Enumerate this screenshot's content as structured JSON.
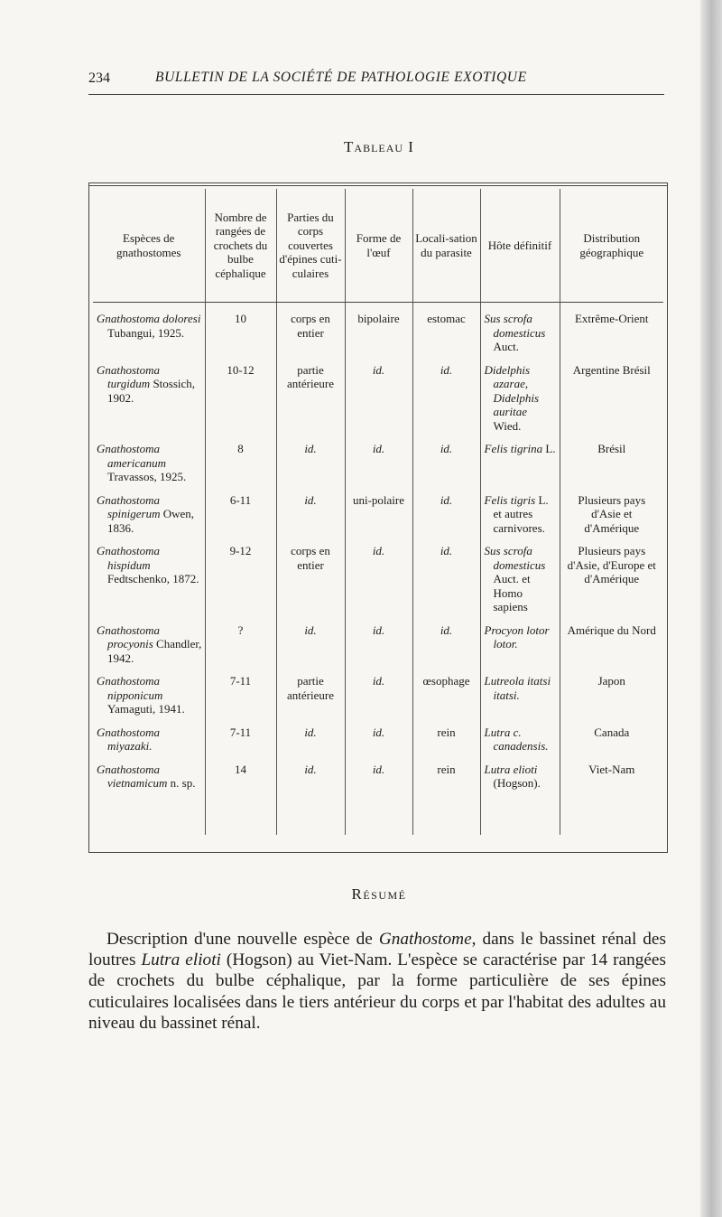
{
  "header": {
    "page_number": "234",
    "running_title": "BULLETIN DE LA SOCIÉTÉ DE PATHOLOGIE EXOTIQUE"
  },
  "table": {
    "title": "Tableau I",
    "columns": [
      "Espèces de gnathostomes",
      "Nombre de rangées de crochets du bulbe céphalique",
      "Parties du corps couvertes d'épines cuti-culaires",
      "Forme de l'œuf",
      "Locali-sation du parasite",
      "Hôte définitif",
      "Distribution géographique"
    ],
    "rows": [
      {
        "species": "Gnathostoma doloresi",
        "author": "Tubangui, 1925.",
        "rows": "10",
        "parts": "corps en entier",
        "egg": "bipolaire",
        "loc": "estomac",
        "host": "Sus scrofa domesticus",
        "host_rest": "Auct.",
        "dist": "Extrême-Orient"
      },
      {
        "species": "Gnathostoma turgidum",
        "author": "Stossich, 1902.",
        "rows": "10-12",
        "parts": "partie antérieure",
        "egg": "id.",
        "loc": "id.",
        "host": "Didelphis azarae, Didelphis auritae",
        "host_rest": "Wied.",
        "dist": "Argentine Brésil"
      },
      {
        "species": "Gnathostoma americanum",
        "author": "Travassos, 1925.",
        "rows": "8",
        "parts": "id.",
        "egg": "id.",
        "loc": "id.",
        "host": "Felis tigrina",
        "host_rest": "L.",
        "dist": "Brésil"
      },
      {
        "species": "Gnathostoma spinigerum",
        "author": "Owen, 1836.",
        "rows": "6-11",
        "parts": "id.",
        "egg": "uni-polaire",
        "loc": "id.",
        "host": "Felis tigris",
        "host_rest": "L. et autres carnivores.",
        "dist": "Plusieurs pays d'Asie et d'Amérique"
      },
      {
        "species": "Gnathostoma hispidum",
        "author": "Fedtschenko, 1872.",
        "rows": "9-12",
        "parts": "corps en entier",
        "egg": "id.",
        "loc": "id.",
        "host": "Sus scrofa domesticus",
        "host_rest": "Auct. et Homo sapiens",
        "dist": "Plusieurs pays d'Asie, d'Europe et d'Amérique"
      },
      {
        "species": "Gnathostoma procyonis",
        "author": "Chandler, 1942.",
        "rows": "?",
        "parts": "id.",
        "egg": "id.",
        "loc": "id.",
        "host": "Procyon lotor lotor.",
        "host_rest": "",
        "dist": "Amérique du Nord"
      },
      {
        "species": "Gnathostoma nipponicum",
        "author": "Yamaguti, 1941.",
        "rows": "7-11",
        "parts": "partie antérieure",
        "egg": "id.",
        "loc": "œsophage",
        "host": "Lutreola itatsi itatsi.",
        "host_rest": "",
        "dist": "Japon"
      },
      {
        "species": "Gnathostoma miyazaki.",
        "author": "",
        "rows": "7-11",
        "parts": "id.",
        "egg": "id.",
        "loc": "rein",
        "host": "Lutra c. canadensis.",
        "host_rest": "",
        "dist": "Canada"
      },
      {
        "species": "Gnathostoma vietnamicum",
        "author": "n. sp.",
        "rows": "14",
        "parts": "id.",
        "egg": "id.",
        "loc": "rein",
        "host": "Lutra elioti",
        "host_rest": "(Hogson).",
        "dist": "Viet-Nam"
      }
    ]
  },
  "resume": {
    "heading": "Résumé",
    "p1": "Description d'une nouvelle espèce de ",
    "g": "Gnathostome",
    "p2": ", dans le bassinet rénal des loutres ",
    "lutra": "Lutra elioti",
    "p3": " (Hogson) au Viet-Nam. L'espèce se caractérise par 14 rangées de crochets du bulbe céphalique, par la forme particulière de ses épines cuticulaires localisées dans le tiers antérieur du corps et par l'habitat des adultes au niveau du bassinet rénal."
  }
}
